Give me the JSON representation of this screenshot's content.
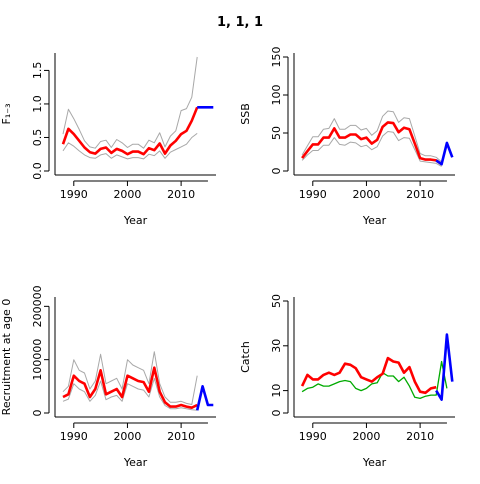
{
  "figure_title": "1, 1, 1",
  "colors": {
    "hist": "#ff0000",
    "proj": "#0000ff",
    "ci": "#a8a8a8",
    "observed": "#00aa00",
    "axis": "#000000"
  },
  "chart_data": [
    {
      "type": "line",
      "ylabel": "F₁₋₃",
      "xlabel": "Year",
      "xlim": [
        1986.5,
        2016.5
      ],
      "ylim": [
        0,
        1.7
      ],
      "xticks": [
        1990,
        2000,
        2010
      ],
      "yticks": [
        0,
        0.5,
        1.0,
        1.5
      ],
      "ytick_labels": [
        "0.0",
        "0.5",
        "1.0",
        "1.5"
      ],
      "series": [
        {
          "role": "hist",
          "x": [
            1988,
            1989,
            1990,
            1991,
            1992,
            1993,
            1994,
            1995,
            1996,
            1997,
            1998,
            1999,
            2000,
            2001,
            2002,
            2003,
            2004,
            2005,
            2006,
            2007,
            2008,
            2009,
            2010,
            2011,
            2012,
            2013
          ],
          "y": [
            0.4,
            0.63,
            0.55,
            0.45,
            0.35,
            0.28,
            0.26,
            0.33,
            0.35,
            0.27,
            0.33,
            0.3,
            0.25,
            0.29,
            0.29,
            0.25,
            0.34,
            0.31,
            0.41,
            0.26,
            0.38,
            0.45,
            0.55,
            0.6,
            0.75,
            0.95
          ]
        },
        {
          "role": "ci_upper",
          "x": [
            1988,
            1989,
            1990,
            1991,
            1992,
            1993,
            1994,
            1995,
            1996,
            1997,
            1998,
            1999,
            2000,
            2001,
            2002,
            2003,
            2004,
            2005,
            2006,
            2007,
            2008,
            2009,
            2010,
            2011,
            2012,
            2013
          ],
          "y": [
            0.55,
            0.92,
            0.78,
            0.62,
            0.45,
            0.36,
            0.34,
            0.44,
            0.46,
            0.35,
            0.47,
            0.42,
            0.35,
            0.4,
            0.4,
            0.34,
            0.46,
            0.42,
            0.57,
            0.36,
            0.52,
            0.6,
            0.9,
            0.93,
            1.1,
            1.7
          ]
        },
        {
          "role": "ci_lower",
          "x": [
            1988,
            1989,
            1990,
            1991,
            1992,
            1993,
            1994,
            1995,
            1996,
            1997,
            1998,
            1999,
            2000,
            2001,
            2002,
            2003,
            2004,
            2005,
            2006,
            2007,
            2008,
            2009,
            2010,
            2011,
            2012,
            2013
          ],
          "y": [
            0.3,
            0.42,
            0.37,
            0.3,
            0.24,
            0.2,
            0.19,
            0.24,
            0.26,
            0.19,
            0.24,
            0.21,
            0.18,
            0.2,
            0.2,
            0.18,
            0.25,
            0.23,
            0.3,
            0.19,
            0.28,
            0.32,
            0.36,
            0.4,
            0.5,
            0.56
          ]
        },
        {
          "role": "proj",
          "x": [
            2013,
            2014,
            2015,
            2016
          ],
          "y": [
            0.95,
            0.95,
            0.95,
            0.95
          ]
        }
      ]
    },
    {
      "type": "line",
      "ylabel": "SSB",
      "xlabel": "Year",
      "xlim": [
        1986.5,
        2016.5
      ],
      "ylim": [
        0,
        150
      ],
      "xticks": [
        1990,
        2000,
        2010
      ],
      "yticks": [
        0,
        50,
        100,
        150
      ],
      "ytick_labels": [
        "0",
        "50",
        "100",
        "150"
      ],
      "series": [
        {
          "role": "hist",
          "x": [
            1988,
            1989,
            1990,
            1991,
            1992,
            1993,
            1994,
            1995,
            1996,
            1997,
            1998,
            1999,
            2000,
            2001,
            2002,
            2003,
            2004,
            2005,
            2006,
            2007,
            2008,
            2009,
            2010,
            2011,
            2012,
            2013,
            2014
          ],
          "y": [
            17,
            26,
            35,
            35,
            44,
            44,
            56,
            44,
            44,
            48,
            48,
            42,
            44,
            36,
            41,
            58,
            64,
            63,
            51,
            57,
            55,
            36,
            17,
            15,
            15,
            14,
            9
          ]
        },
        {
          "role": "ci_upper",
          "x": [
            1988,
            1989,
            1990,
            1991,
            1992,
            1993,
            1994,
            1995,
            1996,
            1997,
            1998,
            1999,
            2000,
            2001,
            2002,
            2003,
            2004,
            2005,
            2006,
            2007,
            2008,
            2009,
            2010,
            2011,
            2012,
            2013,
            2014
          ],
          "y": [
            21,
            33,
            45,
            45,
            55,
            56,
            69,
            55,
            55,
            60,
            60,
            54,
            56,
            47,
            53,
            72,
            79,
            78,
            64,
            70,
            69,
            46,
            23,
            20,
            20,
            18,
            12
          ]
        },
        {
          "role": "ci_lower",
          "x": [
            1988,
            1989,
            1990,
            1991,
            1992,
            1993,
            1994,
            1995,
            1996,
            1997,
            1998,
            1999,
            2000,
            2001,
            2002,
            2003,
            2004,
            2005,
            2006,
            2007,
            2008,
            2009,
            2010,
            2011,
            2012,
            2013,
            2014
          ],
          "y": [
            14,
            21,
            27,
            27,
            34,
            34,
            44,
            35,
            34,
            38,
            37,
            32,
            34,
            28,
            32,
            46,
            52,
            51,
            40,
            44,
            43,
            28,
            13,
            12,
            11,
            10,
            6
          ]
        },
        {
          "role": "proj",
          "x": [
            2013,
            2014,
            2015,
            2016
          ],
          "y": [
            14,
            9,
            37,
            18
          ]
        }
      ]
    },
    {
      "type": "line",
      "ylabel": "Recruitment at age 0",
      "xlabel": "Year",
      "xlim": [
        1986.5,
        2016.5
      ],
      "ylim": [
        0,
        210000
      ],
      "xticks": [
        1990,
        2000,
        2010
      ],
      "yticks": [
        0,
        100000,
        200000
      ],
      "ytick_labels": [
        "0",
        "100000",
        "200000"
      ],
      "series": [
        {
          "role": "hist",
          "x": [
            1988,
            1989,
            1990,
            1991,
            1992,
            1993,
            1994,
            1995,
            1996,
            1997,
            1998,
            1999,
            2000,
            2001,
            2002,
            2003,
            2004,
            2005,
            2006,
            2007,
            2008,
            2009,
            2010,
            2011,
            2012,
            2013
          ],
          "y": [
            30000,
            35000,
            70000,
            60000,
            55000,
            30000,
            45000,
            80000,
            35000,
            40000,
            45000,
            30000,
            70000,
            65000,
            60000,
            58000,
            40000,
            85000,
            40000,
            20000,
            12000,
            12000,
            15000,
            12000,
            10000,
            15000
          ]
        },
        {
          "role": "ci_upper",
          "x": [
            1988,
            1989,
            1990,
            1991,
            1992,
            1993,
            1994,
            1995,
            1996,
            1997,
            1998,
            1999,
            2000,
            2001,
            2002,
            2003,
            2004,
            2005,
            2006,
            2007,
            2008,
            2009,
            2010,
            2011,
            2012,
            2013
          ],
          "y": [
            40000,
            50000,
            100000,
            80000,
            75000,
            45000,
            60000,
            110000,
            55000,
            60000,
            65000,
            45000,
            100000,
            90000,
            85000,
            80000,
            55000,
            115000,
            55000,
            30000,
            20000,
            20000,
            22000,
            18000,
            16000,
            70000
          ]
        },
        {
          "role": "ci_lower",
          "x": [
            1988,
            1989,
            1990,
            1991,
            1992,
            1993,
            1994,
            1995,
            1996,
            1997,
            1998,
            1999,
            2000,
            2001,
            2002,
            2003,
            2004,
            2005,
            2006,
            2007,
            2008,
            2009,
            2010,
            2011,
            2012,
            2013
          ],
          "y": [
            22000,
            26000,
            55000,
            45000,
            40000,
            22000,
            33000,
            60000,
            25000,
            30000,
            33000,
            22000,
            55000,
            50000,
            45000,
            43000,
            30000,
            65000,
            30000,
            14000,
            8000,
            8000,
            10000,
            8000,
            6000,
            5000
          ]
        },
        {
          "role": "proj",
          "x": [
            2013,
            2014,
            2015,
            2016
          ],
          "y": [
            5000,
            50000,
            15000,
            15000
          ]
        }
      ]
    },
    {
      "type": "line",
      "ylabel": "Catch",
      "xlabel": "Year",
      "xlim": [
        1986.5,
        2016.5
      ],
      "ylim": [
        0,
        50
      ],
      "xticks": [
        1990,
        2000,
        2010
      ],
      "yticks": [
        0,
        10,
        30,
        50
      ],
      "ytick_labels": [
        "0",
        "10",
        "30",
        "50"
      ],
      "series": [
        {
          "role": "observed",
          "x": [
            1988,
            1989,
            1990,
            1991,
            1992,
            1993,
            1994,
            1995,
            1996,
            1997,
            1998,
            1999,
            2000,
            2001,
            2002,
            2003,
            2004,
            2005,
            2006,
            2007,
            2008,
            2009,
            2010,
            2011,
            2012,
            2013,
            2014,
            2015
          ],
          "y": [
            9.5,
            11,
            11.5,
            13,
            12,
            12,
            13,
            14,
            14.5,
            14,
            11,
            10,
            11,
            13,
            13.5,
            18,
            16.5,
            16.5,
            14,
            16,
            12,
            7,
            6.5,
            7.5,
            8,
            8,
            23,
            11
          ]
        },
        {
          "role": "hist",
          "x": [
            1988,
            1989,
            1990,
            1991,
            1992,
            1993,
            1994,
            1995,
            1996,
            1997,
            1998,
            1999,
            2000,
            2001,
            2002,
            2003,
            2004,
            2005,
            2006,
            2007,
            2008,
            2009,
            2010,
            2011,
            2012,
            2013
          ],
          "y": [
            12,
            17,
            15,
            15,
            17,
            18,
            17,
            18,
            22,
            21.5,
            20,
            16,
            15,
            14,
            16,
            17.5,
            24.5,
            23,
            22.5,
            18,
            20.5,
            14,
            9.5,
            9,
            11,
            11.5
          ]
        },
        {
          "role": "proj",
          "x": [
            2013,
            2014,
            2015,
            2016
          ],
          "y": [
            10,
            6,
            35,
            14
          ]
        }
      ]
    }
  ]
}
